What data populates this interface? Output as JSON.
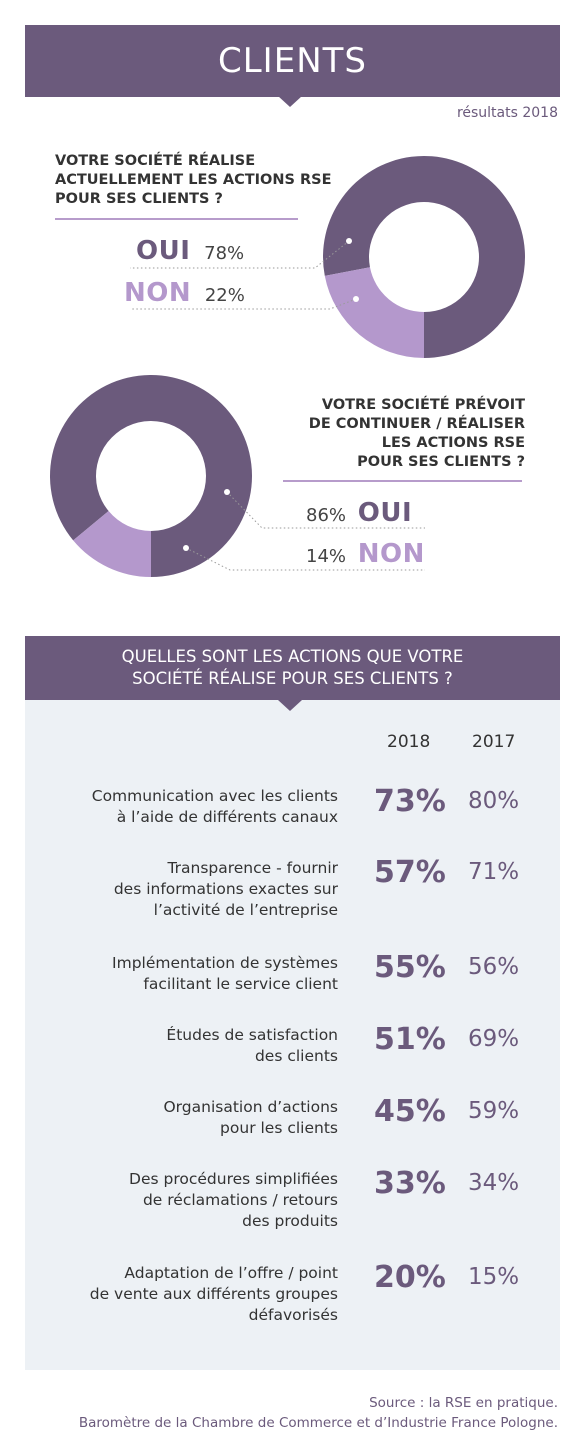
{
  "header": {
    "title": "CLIENTS",
    "year_note": "résultats 2018"
  },
  "answer_labels": {
    "yes": "OUI",
    "no": "NON"
  },
  "colors": {
    "primary": "#6b5a7c",
    "light": "#b498cc",
    "panel": "#edf1f5"
  },
  "chart_data": [
    {
      "type": "pie",
      "title": "VOTRE SOCIÉTÉ RÉALISE\nACTUELLEMENT LES ACTIONS RSE\nPOUR SES CLIENTS ?",
      "categories": [
        "OUI",
        "NON"
      ],
      "values": [
        78,
        22
      ],
      "value_labels": [
        "78%",
        "22%"
      ]
    },
    {
      "type": "pie",
      "title": "VOTRE SOCIÉTÉ PRÉVOIT\nDE CONTINUER / RÉALISER\nLES ACTIONS RSE\nPOUR SES CLIENTS ?",
      "categories": [
        "OUI",
        "NON"
      ],
      "values": [
        86,
        14
      ],
      "value_labels": [
        "86%",
        "14%"
      ]
    },
    {
      "type": "table",
      "title": "QUELLES SONT LES ACTIONS QUE VOTRE\nSOCIÉTÉ RÉALISE POUR SES CLIENTS ?",
      "columns": [
        "2018",
        "2017"
      ],
      "rows": [
        {
          "label": "Communication avec les clients\nà l’aide de différents canaux",
          "v2018": "73%",
          "v2017": "80%"
        },
        {
          "label": "Transparence - fournir\ndes informations exactes sur\nl’activité de l’entreprise",
          "v2018": "57%",
          "v2017": "71%"
        },
        {
          "label": "Implémentation de systèmes\nfacilitant le service client",
          "v2018": "55%",
          "v2017": "56%"
        },
        {
          "label": "Études de satisfaction\ndes clients",
          "v2018": "51%",
          "v2017": "69%"
        },
        {
          "label": "Organisation d’actions\npour les clients",
          "v2018": "45%",
          "v2017": "59%"
        },
        {
          "label": "Des procédures simplifiées\nde réclamations / retours\ndes produits",
          "v2018": "33%",
          "v2017": "34%"
        },
        {
          "label": "Adaptation de l’offre / point\nde vente aux différents groupes\ndéfavorisés",
          "v2018": "20%",
          "v2017": "15%"
        }
      ]
    }
  ],
  "footer": {
    "source_line1": "Source : la RSE en pratique.",
    "source_line2": "Baromètre de la Chambre de Commerce et d’Industrie France Pologne."
  }
}
